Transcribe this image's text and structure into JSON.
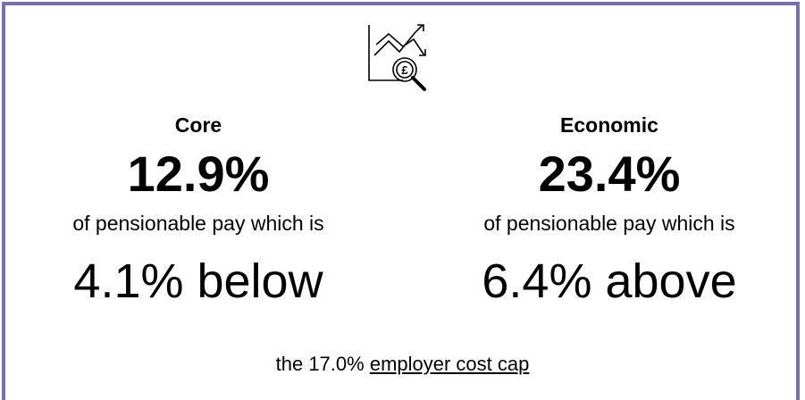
{
  "icon": {
    "symbol": "£"
  },
  "panels": [
    {
      "title": "Core",
      "rate": "12.9%",
      "description": "of pensionable pay which is",
      "comparison": "4.1% below"
    },
    {
      "title": "Economic",
      "rate": "23.4%",
      "description": "of pensionable pay which is",
      "comparison": "6.4% above"
    }
  ],
  "footer": {
    "text": "the 17.0%",
    "link": "employer cost cap"
  }
}
